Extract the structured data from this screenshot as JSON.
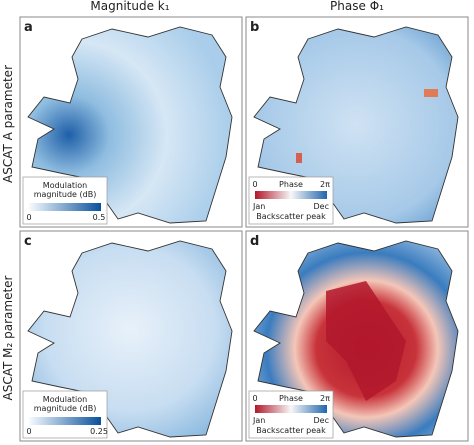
{
  "columns": [
    "Magnitude k₁",
    "Phase Φ₁"
  ],
  "rows": [
    "ASCAT A parameter",
    "ASCAT M₂ parameter"
  ],
  "panels": [
    {
      "letter": "a",
      "legend": {
        "title": [
          "Modulation",
          "magnitude (dB)"
        ],
        "min": "0",
        "max": "0.5"
      }
    },
    {
      "letter": "b",
      "legend": {
        "min": "0",
        "title": "Phase",
        "max": "2π",
        "start": "Jan",
        "end": "Dec",
        "caption": "Backscatter peak"
      }
    },
    {
      "letter": "c",
      "legend": {
        "title": [
          "Modulation",
          "magnitude (dB)"
        ],
        "min": "0",
        "max": "0.25"
      }
    },
    {
      "letter": "d",
      "legend": {
        "min": "0",
        "title": "Phase",
        "max": "2π",
        "start": "Jan",
        "end": "Dec",
        "caption": "Backscatter peak"
      }
    }
  ]
}
